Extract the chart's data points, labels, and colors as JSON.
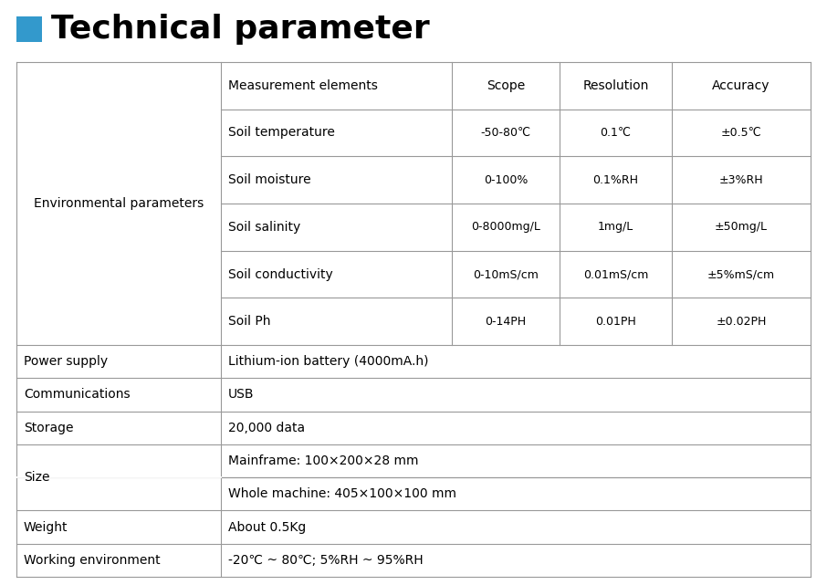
{
  "title": "Technical parameter",
  "title_color": "#000000",
  "title_fontsize": 26,
  "square_color": "#3399CC",
  "table_border_color": "#999999",
  "bg_color": "#ffffff",
  "header_row": [
    "Measurement elements",
    "Scope",
    "Resolution",
    "Accuracy"
  ],
  "env_rows": [
    [
      "Soil temperature",
      "-50-80℃",
      "0.1℃",
      "±0.5℃"
    ],
    [
      "Soil moisture",
      "0-100%",
      "0.1%RH",
      "±3%RH"
    ],
    [
      "Soil salinity",
      "0-8000mg/L",
      "1mg/L",
      "±50mg/L"
    ],
    [
      "Soil conductivity",
      "0-10mS/cm",
      "0.01mS/cm",
      "±5%mS/cm"
    ],
    [
      "Soil Ph",
      "0-14PH",
      "0.01PH",
      "±0.02PH"
    ]
  ],
  "env_label": "Environmental parameters",
  "simple_rows": [
    [
      "Power supply",
      "Lithium-ion battery (4000mA.h)"
    ],
    [
      "Communications",
      "USB"
    ],
    [
      "Storage",
      "20,000 data"
    ]
  ],
  "size_label": "Size",
  "size_values": [
    "Mainframe: 100×200×28 mm",
    "Whole machine: 405×100×100 mm"
  ],
  "weight_row": [
    "Weight",
    "About 0.5Kg"
  ],
  "working_row": [
    "Working environment",
    "-20℃ ~ 80℃; 5%RH ~ 95%RH"
  ],
  "fs_main": 10,
  "fs_small": 9,
  "lw": 0.8,
  "lc": "#999999"
}
